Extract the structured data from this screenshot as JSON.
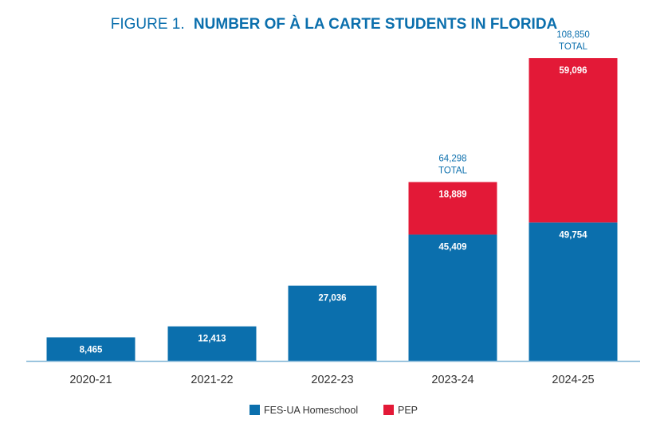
{
  "chart_data": {
    "type": "bar",
    "stacked": true,
    "title_prefix": "FIGURE 1.",
    "title_main": "NUMBER OF À LA CARTE STUDENTS IN FLORIDA",
    "categories": [
      "2020-21",
      "2021-22",
      "2022-23",
      "2023-24",
      "2024-25"
    ],
    "series": [
      {
        "name": "FES-UA Homeschool",
        "color": "#0b6fad",
        "values": [
          8465,
          12413,
          27036,
          45409,
          49754
        ],
        "labels": [
          "8,465",
          "12,413",
          "27,036",
          "45,409",
          "49,754"
        ]
      },
      {
        "name": "PEP",
        "color": "#e31937",
        "values": [
          null,
          null,
          null,
          18889,
          59096
        ],
        "labels": [
          null,
          null,
          null,
          "18,889",
          "59,096"
        ]
      }
    ],
    "totals": [
      null,
      null,
      null,
      {
        "value": "64,298",
        "label": "TOTAL"
      },
      {
        "value": "108,850",
        "label": "TOTAL"
      }
    ],
    "legend": [
      {
        "name": "FES-UA Homeschool",
        "color": "#0b6fad"
      },
      {
        "name": "PEP",
        "color": "#e31937"
      }
    ],
    "legend_position": "bottom-center",
    "grid": false,
    "ylim": [
      0,
      108850
    ],
    "title_color": "#0b6fad",
    "axis_color": "#7fb4d6",
    "label_color": "#333333"
  }
}
